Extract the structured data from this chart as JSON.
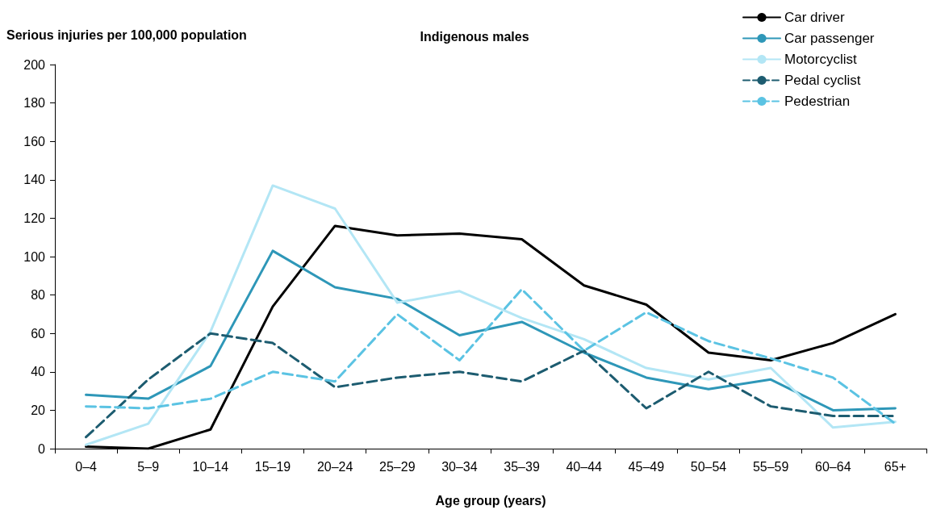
{
  "chart_data": {
    "type": "line",
    "title": "Indigenous males",
    "xlabel": "Age group (years)",
    "ylabel": "Serious injuries per 100,000 population",
    "categories": [
      "0–4",
      "5–9",
      "10–14",
      "15–19",
      "20–24",
      "25–29",
      "30–34",
      "35–39",
      "40–44",
      "45–49",
      "50–54",
      "55–59",
      "60–64",
      "65+"
    ],
    "series": [
      {
        "name": "Car driver",
        "color": "#000000",
        "line_style": "solid",
        "values": [
          1,
          0,
          10,
          74,
          116,
          111,
          112,
          109,
          85,
          75,
          50,
          46,
          55,
          70
        ]
      },
      {
        "name": "Car passenger",
        "color": "#2e97b8",
        "line_style": "solid",
        "values": [
          28,
          26,
          43,
          103,
          84,
          78,
          59,
          66,
          50,
          37,
          31,
          36,
          20,
          21
        ]
      },
      {
        "name": "Motorcyclist",
        "color": "#b3e6f5",
        "line_style": "solid",
        "values": [
          2,
          13,
          61,
          137,
          125,
          76,
          82,
          68,
          57,
          42,
          36,
          42,
          11,
          14
        ]
      },
      {
        "name": "Pedal cyclist",
        "color": "#1d5c70",
        "line_style": "dashed",
        "values": [
          6,
          36,
          60,
          55,
          32,
          37,
          40,
          35,
          51,
          21,
          40,
          22,
          17,
          17
        ]
      },
      {
        "name": "Pedestrian",
        "color": "#5bc3e3",
        "line_style": "dashed",
        "values": [
          22,
          21,
          26,
          40,
          35,
          70,
          46,
          83,
          51,
          71,
          56,
          47,
          37,
          13
        ]
      }
    ],
    "ylim": [
      0,
      200
    ],
    "yticks": [
      0,
      20,
      40,
      60,
      80,
      100,
      120,
      140,
      160,
      180,
      200
    ],
    "grid": false,
    "legend": "top right",
    "marker": "none"
  }
}
